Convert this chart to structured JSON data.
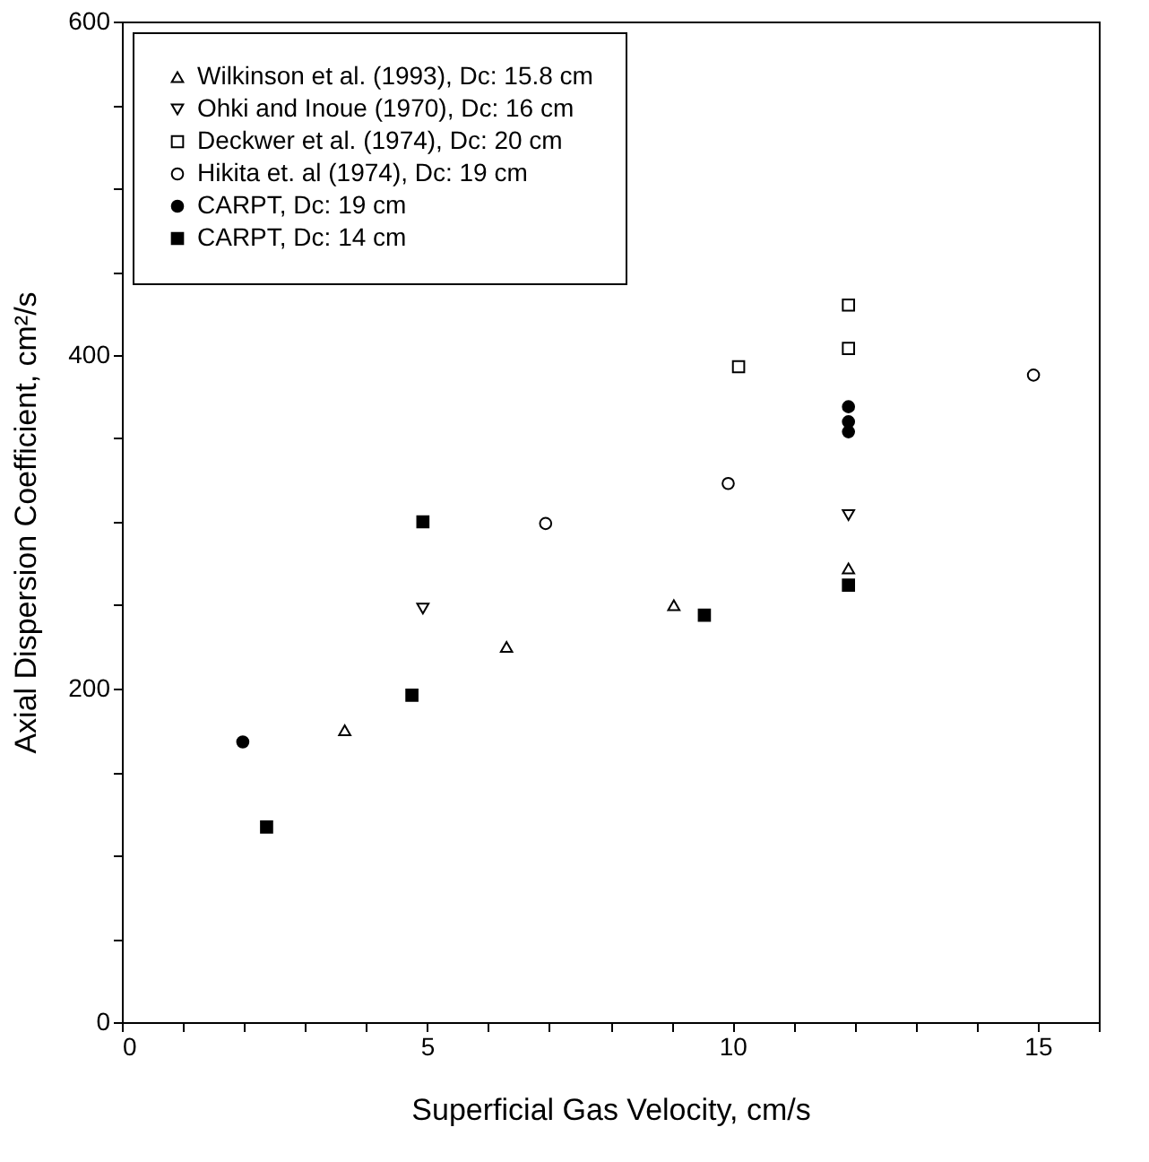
{
  "chart_data": {
    "type": "scatter",
    "xlabel": "Superficial Gas Velocity, cm/s",
    "ylabel": "Axial Dispersion Coefficient, cm²/s",
    "xlim": [
      0,
      16
    ],
    "ylim": [
      0,
      600
    ],
    "xticks": [
      0,
      {
        "value": 1,
        "label": null
      },
      {
        "value": 2,
        "label": null
      },
      {
        "value": 3,
        "label": null
      },
      {
        "value": 4,
        "label": null
      },
      5,
      {
        "value": 6,
        "label": null
      },
      {
        "value": 7,
        "label": null
      },
      {
        "value": 8,
        "label": null
      },
      {
        "value": 9,
        "label": null
      },
      10,
      {
        "value": 11,
        "label": null
      },
      {
        "value": 12,
        "label": null
      },
      {
        "value": 13,
        "label": null
      },
      {
        "value": 14,
        "label": null
      },
      15,
      {
        "value": 16,
        "label": null
      }
    ],
    "yticks": [
      0,
      {
        "value": 50,
        "label": null
      },
      {
        "value": 100,
        "label": null
      },
      {
        "value": 150,
        "label": null
      },
      200,
      {
        "value": 250,
        "label": null
      },
      {
        "value": 300,
        "label": null
      },
      {
        "value": 350,
        "label": null
      },
      400,
      {
        "value": 450,
        "label": null
      },
      {
        "value": 500,
        "label": null
      },
      {
        "value": 550,
        "label": null
      },
      600
    ],
    "grid": false,
    "legend": "top left",
    "series": [
      {
        "name": "Wilkinson et al. (1993), Dc: 15.8 cm",
        "color": "#000000",
        "marker": "triangle",
        "x": [
          3.65,
          6.3,
          9.04,
          11.9
        ],
        "values": [
          175,
          225,
          250,
          272
        ]
      },
      {
        "name": "Ohki and Inoue (1970), Dc: 16 cm",
        "color": "#000000",
        "marker": "triangle-down",
        "x": [
          4.93,
          11.9
        ],
        "values": [
          248,
          304
        ]
      },
      {
        "name": "Deckwer et al. (1974), Dc: 20 cm",
        "color": "#000000",
        "marker": "square",
        "x": [
          10.1,
          11.9,
          11.9
        ],
        "values": [
          393,
          430,
          404
        ]
      },
      {
        "name": "Hikita et. al (1974), Dc: 19 cm",
        "color": "#000000",
        "marker": "circle",
        "x": [
          6.94,
          9.93,
          14.93
        ],
        "values": [
          299,
          323,
          388
        ]
      },
      {
        "name": "CARPT, Dc: 19 cm",
        "color": "#000000",
        "marker": "circle-filled",
        "x": [
          1.98,
          11.9,
          11.9,
          11.9
        ],
        "values": [
          168,
          369,
          360,
          354
        ]
      },
      {
        "name": "CARPT, Dc: 14 cm",
        "color": "#000000",
        "marker": "square-filled",
        "x": [
          2.37,
          4.75,
          4.93,
          9.54,
          11.9
        ],
        "values": [
          117,
          196,
          300,
          244,
          262
        ]
      }
    ]
  }
}
